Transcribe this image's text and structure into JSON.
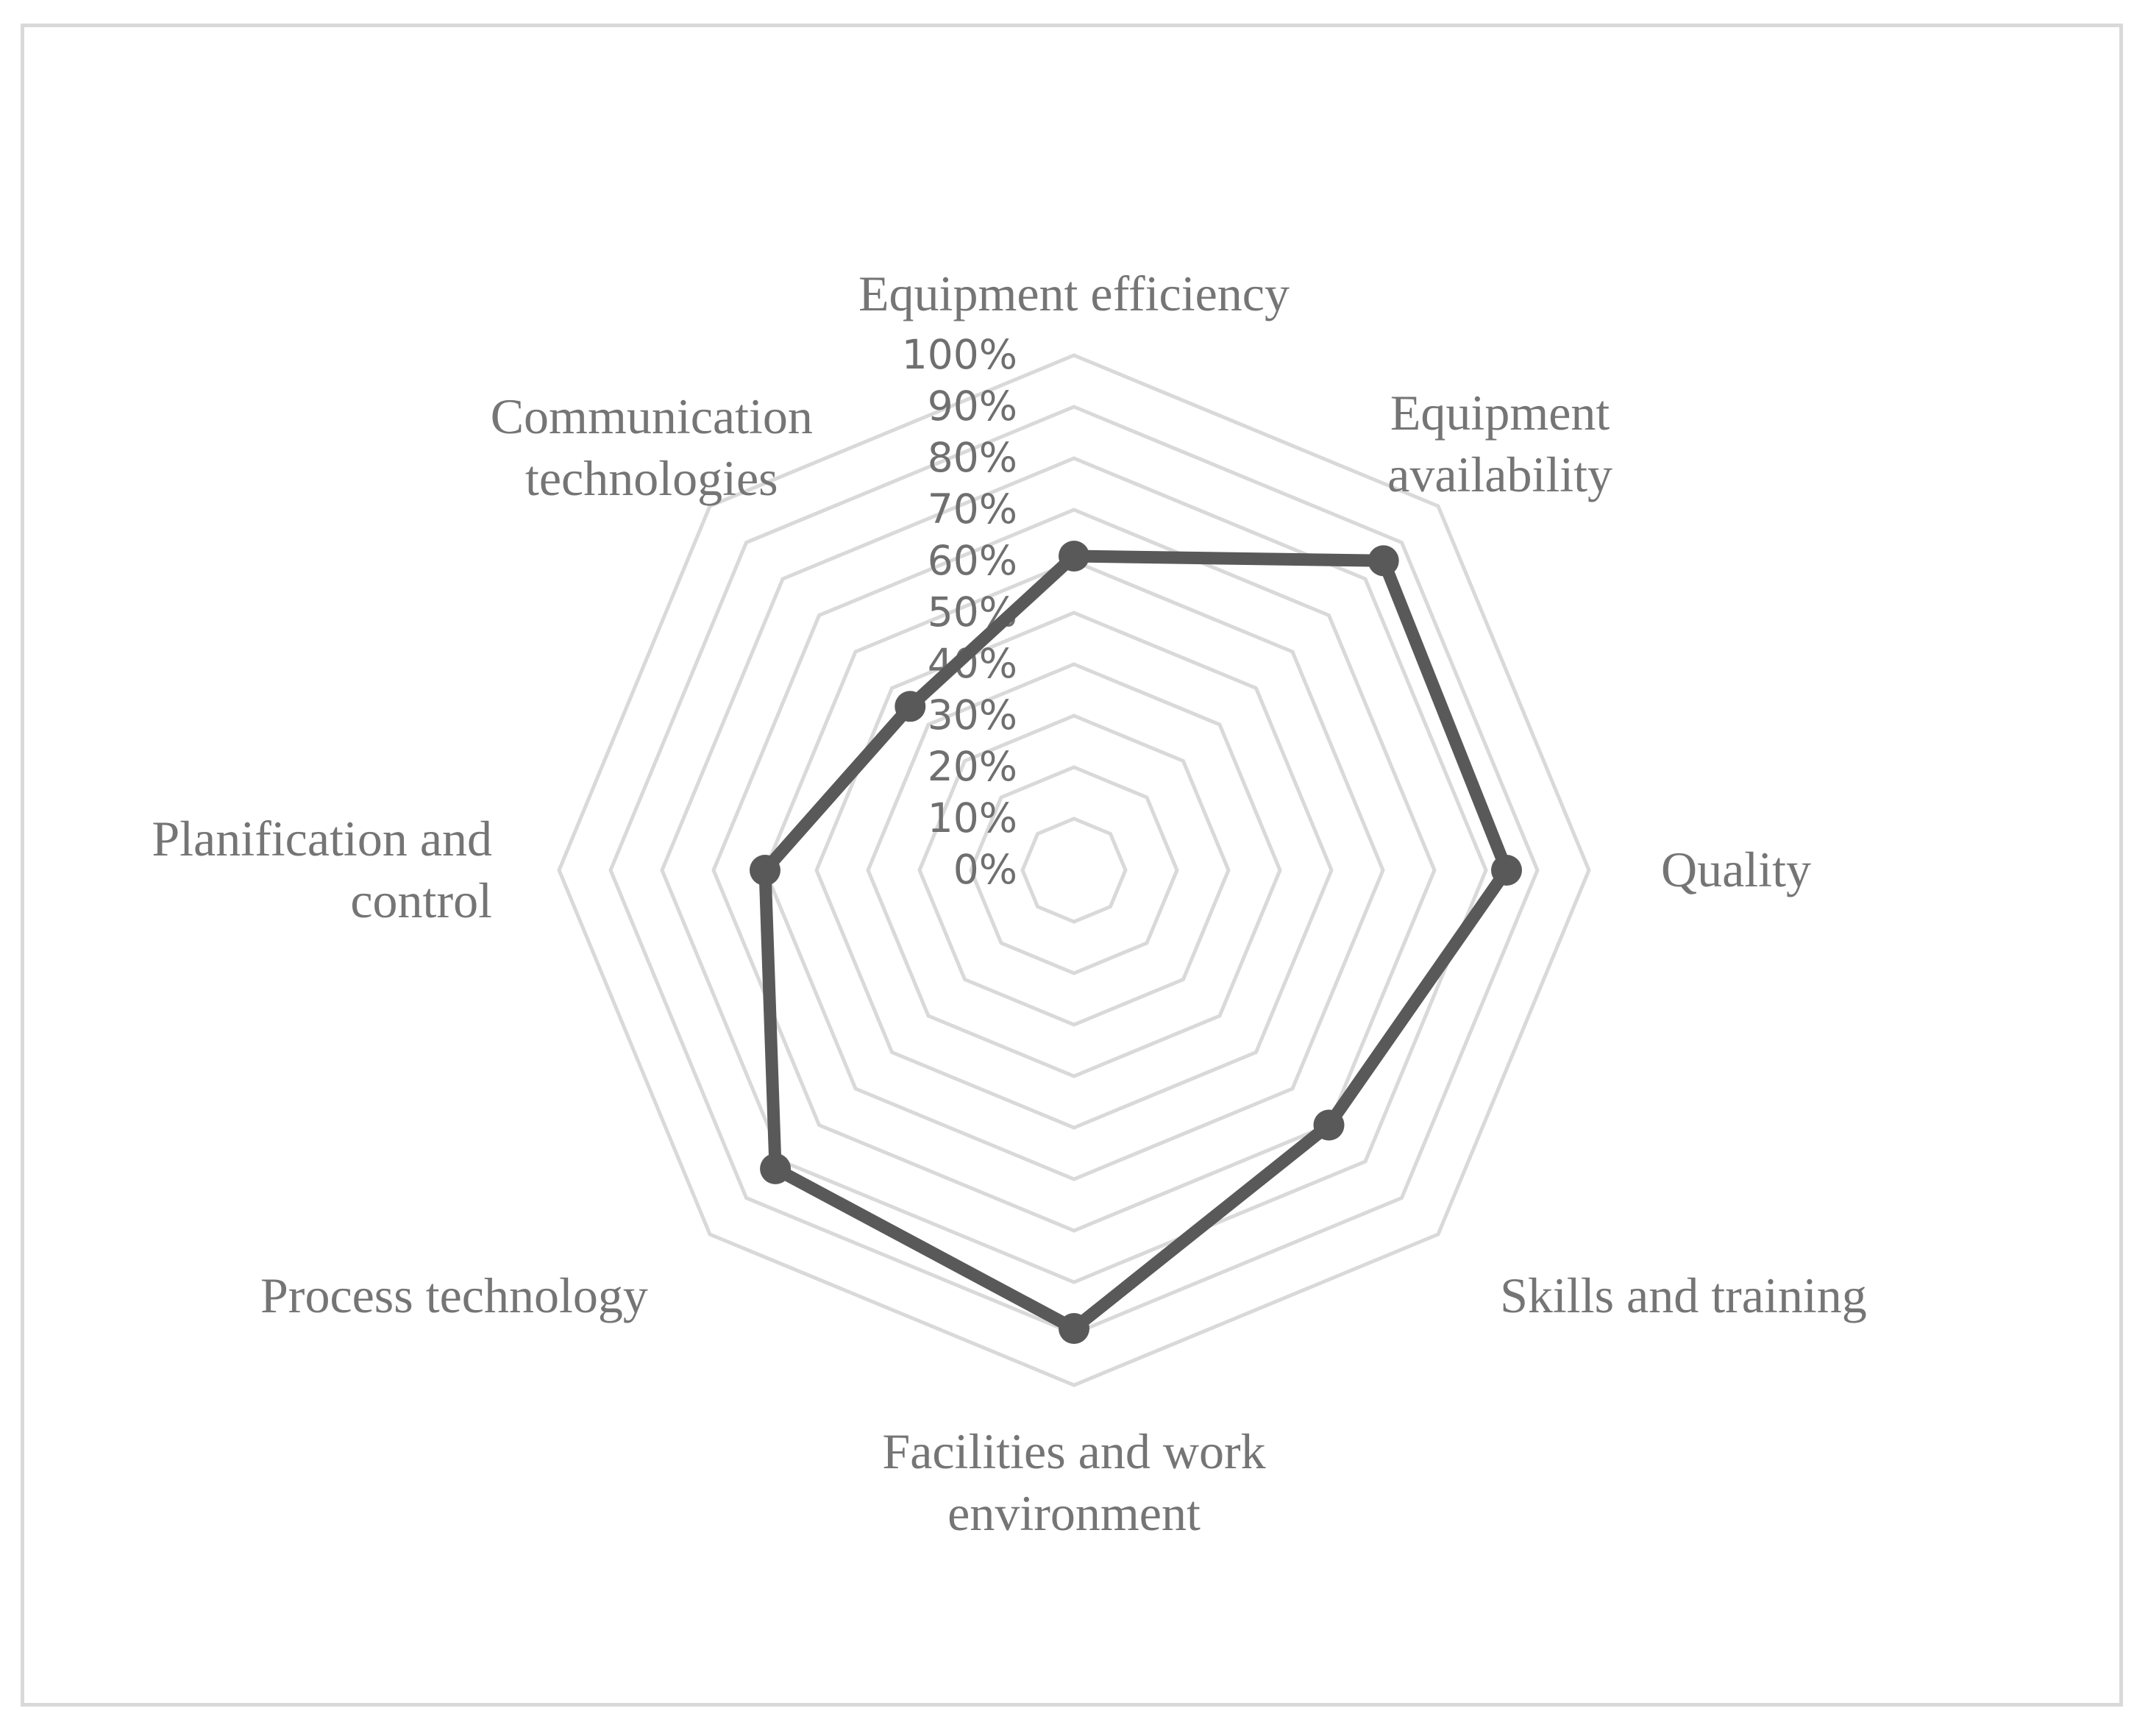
{
  "chart_data": {
    "type": "radar",
    "title": "",
    "categories": [
      "Equipment efficiency",
      "Equipment availability",
      "Quality",
      "Skills and training",
      "Facilities and work environment",
      "Process technology",
      "Planification and control",
      "Communication technologies"
    ],
    "category_label_lines": [
      [
        "Equipment efficiency"
      ],
      [
        "Equipment",
        "availability"
      ],
      [
        "Quality"
      ],
      [
        "Skills and training"
      ],
      [
        "Facilities and work",
        "environment"
      ],
      [
        "Process technology"
      ],
      [
        "Planification and",
        "control"
      ],
      [
        "Communication",
        "technologies"
      ]
    ],
    "series": [
      {
        "values": [
          0.61,
          0.85,
          0.84,
          0.7,
          0.89,
          0.82,
          0.6,
          0.45
        ]
      }
    ],
    "rlim": [
      0,
      1
    ],
    "tick_labels": [
      "0%",
      "10%",
      "20%",
      "30%",
      "40%",
      "50%",
      "60%",
      "70%",
      "80%",
      "90%",
      "100%"
    ],
    "grid": true,
    "legend": "none",
    "colors": {
      "series": "#595959",
      "grid": "#d9d9d9",
      "label": "#757575",
      "tick": "#6f6f6f",
      "frame": "#d9d9d9"
    }
  }
}
